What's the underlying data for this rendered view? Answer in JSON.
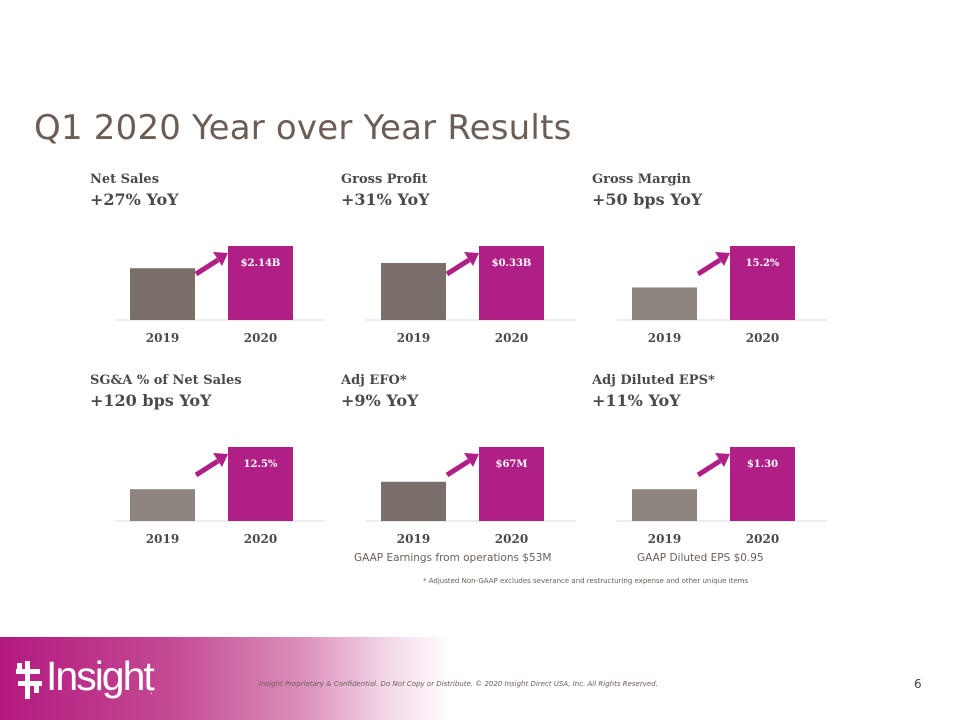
{
  "slide": {
    "title": "Q1 2020 Year over Year Results",
    "page_number": "6",
    "footnote": "* Adjusted Non-GAAP excludes severance and restructuring  expense and other unique items",
    "confidential": "Insight Proprietary & Confidential. Do Not Copy or Distribute.  © 2020 Insight Direct USA, Inc. All Rights Reserved.",
    "logo_text": "Insight",
    "logo_mark": ".",
    "notes": {
      "adj_efo": "GAAP Earnings from operations $53M",
      "adj_eps": "GAAP Diluted EPS $0.95"
    }
  },
  "colors": {
    "title": "#6b5e57",
    "bar_2019_dark": "#7a6e69",
    "bar_2019_light": "#8f8580",
    "bar_2020": "#b01f86",
    "arrow": "#b01f86",
    "axis": "#d9d9d9",
    "footer_magenta": "#b3197f"
  },
  "chart_data": [
    {
      "type": "bar",
      "metric": "Net Sales",
      "yoy": "+27% YoY",
      "categories": [
        "2019",
        "2020"
      ],
      "values": [
        1.68,
        2.14
      ],
      "value_label": "$2.14B",
      "show_arrow": true
    },
    {
      "type": "bar",
      "metric": "Gross Profit",
      "yoy": "+31% YoY",
      "categories": [
        "2019",
        "2020"
      ],
      "values": [
        0.25,
        0.33
      ],
      "value_label": "$0.33B",
      "show_arrow": true
    },
    {
      "type": "bar",
      "metric": "Gross Margin",
      "yoy": "+50 bps YoY",
      "categories": [
        "2019",
        "2020"
      ],
      "values": [
        14.7,
        15.2
      ],
      "value_label": "15.2%",
      "show_arrow": true
    },
    {
      "type": "bar",
      "metric": "SG&A  % of Net Sales",
      "yoy": "+120 bps YoY",
      "categories": [
        "2019",
        "2020"
      ],
      "values": [
        11.3,
        12.5
      ],
      "value_label": "12.5%",
      "show_arrow": true
    },
    {
      "type": "bar",
      "metric": "Adj EFO*",
      "yoy": "+9% YoY",
      "categories": [
        "2019",
        "2020"
      ],
      "values": [
        61,
        67
      ],
      "value_label": "$67M",
      "show_arrow": true
    },
    {
      "type": "bar",
      "metric": "Adj Diluted  EPS*",
      "yoy": "+11% YoY",
      "categories": [
        "2019",
        "2020"
      ],
      "values": [
        1.17,
        1.3
      ],
      "value_label": "$1.30",
      "show_arrow": true
    }
  ]
}
